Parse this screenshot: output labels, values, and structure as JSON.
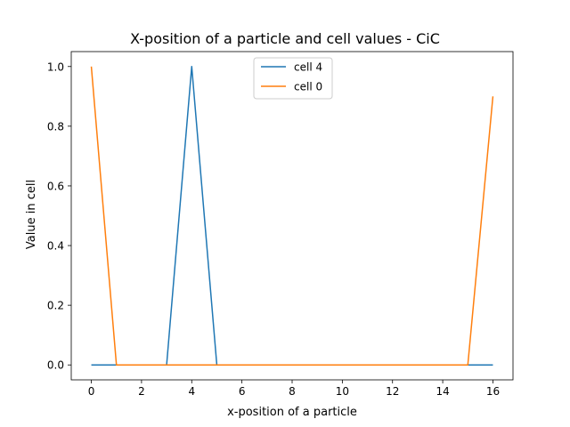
{
  "chart_data": {
    "type": "line",
    "title": "X-position of a particle and cell values - CiC",
    "xlabel": "x-position of a particle",
    "ylabel": "Value in cell",
    "xlim": [
      -0.8,
      16.8
    ],
    "ylim": [
      -0.05,
      1.05
    ],
    "xticks": [
      0,
      2,
      4,
      6,
      8,
      10,
      12,
      14,
      16
    ],
    "yticks": [
      0.0,
      0.2,
      0.4,
      0.6,
      0.8,
      1.0
    ],
    "xtick_labels": [
      "0",
      "2",
      "4",
      "6",
      "8",
      "10",
      "12",
      "14",
      "16"
    ],
    "ytick_labels": [
      "0.0",
      "0.2",
      "0.4",
      "0.6",
      "0.8",
      "1.0"
    ],
    "grid": false,
    "legend_position": "top-center",
    "series": [
      {
        "name": "cell 4",
        "color": "#1f77b4",
        "x": [
          0,
          1,
          2,
          3,
          4,
          5,
          6,
          7,
          8,
          9,
          10,
          11,
          12,
          13,
          14,
          15,
          16
        ],
        "y": [
          0,
          0,
          0,
          0,
          1,
          0,
          0,
          0,
          0,
          0,
          0,
          0,
          0,
          0,
          0,
          0,
          0
        ]
      },
      {
        "name": "cell 0",
        "color": "#ff7f0e",
        "x": [
          0,
          1,
          2,
          3,
          4,
          5,
          6,
          7,
          8,
          9,
          10,
          11,
          12,
          13,
          14,
          15,
          16
        ],
        "y": [
          1,
          0,
          0,
          0,
          0,
          0,
          0,
          0,
          0,
          0,
          0,
          0,
          0,
          0,
          0,
          0,
          0.9
        ]
      }
    ]
  }
}
